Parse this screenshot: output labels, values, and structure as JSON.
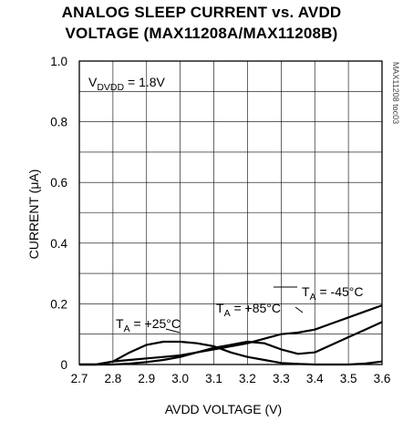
{
  "chart_data": {
    "type": "line",
    "title_line1": "ANALOG SLEEP CURRENT vs. AVDD",
    "title_line2": "VOLTAGE (MAX11208A/MAX11208B)",
    "xlabel": "AVDD VOLTAGE (V)",
    "ylabel": "CURRENT (μA)",
    "xlim": [
      2.7,
      3.6
    ],
    "ylim": [
      0,
      1.0
    ],
    "x_ticks": [
      "2.7",
      "2.8",
      "2.9",
      "3.0",
      "3.1",
      "3.2",
      "3.3",
      "3.4",
      "3.5",
      "3.6"
    ],
    "y_ticks": [
      "0",
      "0.2",
      "0.4",
      "0.6",
      "0.8",
      "1.0"
    ],
    "grid": true,
    "condition_label": {
      "prefix": "V",
      "sub": "DVDD",
      "suffix": " = 1.8V"
    },
    "side_text": "MAX11208 toc03",
    "annotations": [
      {
        "prefix": "T",
        "sub": "A",
        "suffix": " = +25°C"
      },
      {
        "prefix": "T",
        "sub": "A",
        "suffix": " = +85°C"
      },
      {
        "prefix": "T",
        "sub": "A",
        "suffix": " = -45°C"
      }
    ],
    "series": [
      {
        "x": [
          2.7,
          2.75,
          2.8,
          2.85,
          2.9,
          2.95,
          3.0,
          3.05,
          3.1,
          3.15,
          3.2,
          3.25,
          3.3,
          3.35,
          3.4,
          3.45,
          3.5,
          3.55,
          3.6
        ],
        "values": [
          0,
          0,
          0.01,
          0.04,
          0.065,
          0.075,
          0.075,
          0.07,
          0.06,
          0.04,
          0.025,
          0.015,
          0.005,
          0.002,
          0.0,
          0.0,
          0.0,
          0.003,
          0.01
        ]
      },
      {
        "x": [
          2.7,
          2.75,
          2.8,
          2.85,
          2.9,
          2.95,
          3.0,
          3.05,
          3.1,
          3.15,
          3.2,
          3.25,
          3.3,
          3.35,
          3.4,
          3.45,
          3.5,
          3.55,
          3.6
        ],
        "values": [
          0,
          0,
          0.0,
          0.003,
          0.008,
          0.015,
          0.025,
          0.04,
          0.055,
          0.065,
          0.075,
          0.07,
          0.05,
          0.035,
          0.04,
          0.065,
          0.09,
          0.115,
          0.14
        ]
      },
      {
        "x": [
          2.7,
          2.75,
          2.8,
          2.85,
          2.9,
          2.95,
          3.0,
          3.05,
          3.1,
          3.15,
          3.2,
          3.25,
          3.3,
          3.35,
          3.4,
          3.45,
          3.5,
          3.55,
          3.6
        ],
        "values": [
          0,
          0,
          0.01,
          0.015,
          0.02,
          0.025,
          0.03,
          0.04,
          0.05,
          0.06,
          0.07,
          0.085,
          0.1,
          0.105,
          0.115,
          0.135,
          0.155,
          0.175,
          0.195
        ]
      }
    ]
  }
}
